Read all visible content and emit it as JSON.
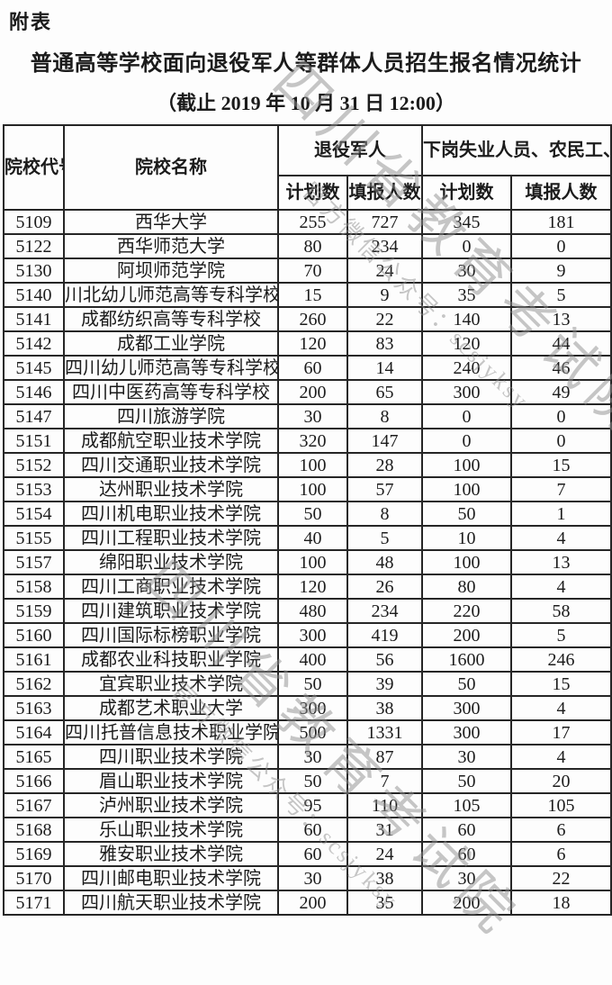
{
  "page": {
    "corner_tag": "附表",
    "title": "普通高等学校面向退役军人等群体人员招生报名情况统计",
    "subtitle": "（截止 2019 年 10 月 31 日 12:00）"
  },
  "watermark": {
    "line1": "四川省教育考试院",
    "line2": "官方微信公众号：scsjyksy",
    "color": "#8f8f8f"
  },
  "table": {
    "headers": {
      "col_code": "院校代号",
      "col_name": "院校名称",
      "group1": "退役军人",
      "group2": "下岗失业人员、农民工、新型职业农民",
      "sub_plan1": "计划数",
      "sub_filled1": "填报人数",
      "sub_plan2": "计划数",
      "sub_filled2": "填报人数"
    },
    "rows": [
      [
        "5109",
        "西华大学",
        "255",
        "727",
        "345",
        "181"
      ],
      [
        "5122",
        "西华师范大学",
        "80",
        "234",
        "0",
        "0"
      ],
      [
        "5130",
        "阿坝师范学院",
        "70",
        "24",
        "30",
        "9"
      ],
      [
        "5140",
        "川北幼儿师范高等专科学校",
        "15",
        "9",
        "35",
        "5"
      ],
      [
        "5141",
        "成都纺织高等专科学校",
        "260",
        "22",
        "140",
        "13"
      ],
      [
        "5142",
        "成都工业学院",
        "120",
        "83",
        "120",
        "44"
      ],
      [
        "5145",
        "四川幼儿师范高等专科学校",
        "60",
        "14",
        "240",
        "46"
      ],
      [
        "5146",
        "四川中医药高等专科学校",
        "200",
        "65",
        "300",
        "49"
      ],
      [
        "5147",
        "四川旅游学院",
        "30",
        "8",
        "0",
        "0"
      ],
      [
        "5151",
        "成都航空职业技术学院",
        "320",
        "147",
        "0",
        "0"
      ],
      [
        "5152",
        "四川交通职业技术学院",
        "100",
        "28",
        "100",
        "15"
      ],
      [
        "5153",
        "达州职业技术学院",
        "100",
        "57",
        "100",
        "7"
      ],
      [
        "5154",
        "四川机电职业技术学院",
        "50",
        "8",
        "50",
        "1"
      ],
      [
        "5155",
        "四川工程职业技术学院",
        "40",
        "5",
        "10",
        "4"
      ],
      [
        "5157",
        "绵阳职业技术学院",
        "100",
        "48",
        "100",
        "13"
      ],
      [
        "5158",
        "四川工商职业技术学院",
        "120",
        "26",
        "80",
        "4"
      ],
      [
        "5159",
        "四川建筑职业技术学院",
        "480",
        "234",
        "220",
        "58"
      ],
      [
        "5160",
        "四川国际标榜职业学院",
        "300",
        "419",
        "200",
        "5"
      ],
      [
        "5161",
        "成都农业科技职业学院",
        "400",
        "56",
        "1600",
        "246"
      ],
      [
        "5162",
        "宜宾职业技术学院",
        "50",
        "39",
        "50",
        "15"
      ],
      [
        "5163",
        "成都艺术职业大学",
        "300",
        "38",
        "300",
        "4"
      ],
      [
        "5164",
        "四川托普信息技术职业学院",
        "500",
        "1331",
        "300",
        "17"
      ],
      [
        "5165",
        "四川职业技术学院",
        "30",
        "87",
        "30",
        "4"
      ],
      [
        "5166",
        "眉山职业技术学院",
        "50",
        "7",
        "50",
        "20"
      ],
      [
        "5167",
        "泸州职业技术学院",
        "95",
        "110",
        "105",
        "105"
      ],
      [
        "5168",
        "乐山职业技术学院",
        "60",
        "31",
        "60",
        "6"
      ],
      [
        "5169",
        "雅安职业技术学院",
        "60",
        "24",
        "60",
        "6"
      ],
      [
        "5170",
        "四川邮电职业技术学院",
        "30",
        "38",
        "30",
        "22"
      ],
      [
        "5171",
        "四川航天职业技术学院",
        "200",
        "35",
        "200",
        "18"
      ]
    ]
  }
}
